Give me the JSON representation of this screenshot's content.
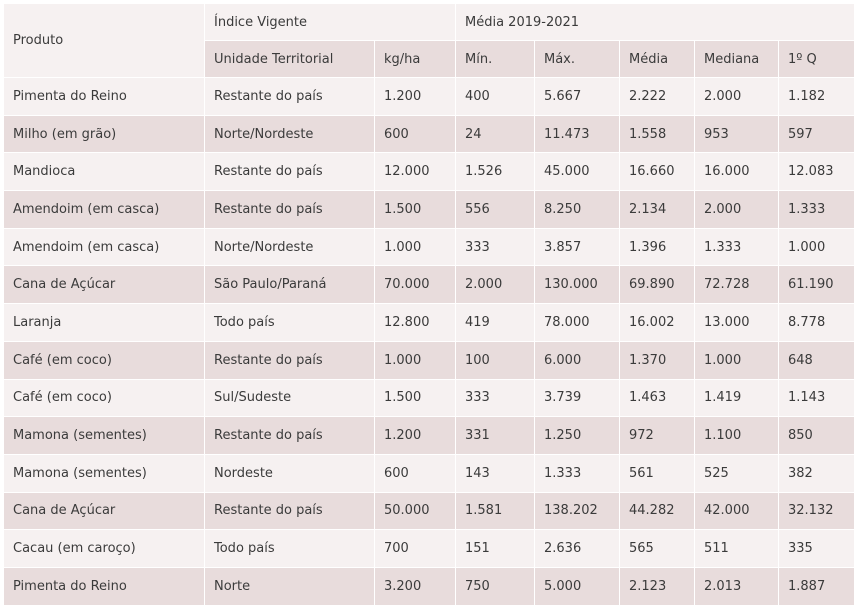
{
  "table": {
    "header": {
      "produto": "Produto",
      "indice_vigente": "Índice Vigente",
      "media_periodo": "Média 2019-2021",
      "unidade_territorial": "Unidade Territorial",
      "kg_ha": "kg/ha",
      "min": "Mín.",
      "max": "Máx.",
      "media": "Média",
      "mediana": "Mediana",
      "q1": "1º Q"
    },
    "rows": [
      {
        "produto": "Pimenta do Reino",
        "unidade": "Restante do país",
        "kg_ha": "1.200",
        "min": "400",
        "max": "5.667",
        "media": "2.222",
        "mediana": "2.000",
        "q1": "1.182"
      },
      {
        "produto": "Milho (em grão)",
        "unidade": "Norte/Nordeste",
        "kg_ha": "600",
        "min": "24",
        "max": "11.473",
        "media": "1.558",
        "mediana": "953",
        "q1": "597"
      },
      {
        "produto": "Mandioca",
        "unidade": "Restante do país",
        "kg_ha": "12.000",
        "min": "1.526",
        "max": "45.000",
        "media": "16.660",
        "mediana": "16.000",
        "q1": "12.083"
      },
      {
        "produto": "Amendoim (em casca)",
        "unidade": "Restante do país",
        "kg_ha": "1.500",
        "min": "556",
        "max": "8.250",
        "media": "2.134",
        "mediana": "2.000",
        "q1": "1.333"
      },
      {
        "produto": "Amendoim (em casca)",
        "unidade": "Norte/Nordeste",
        "kg_ha": "1.000",
        "min": "333",
        "max": "3.857",
        "media": "1.396",
        "mediana": "1.333",
        "q1": "1.000"
      },
      {
        "produto": "Cana de Açúcar",
        "unidade": "São Paulo/Paraná",
        "kg_ha": "70.000",
        "min": "2.000",
        "max": "130.000",
        "media": "69.890",
        "mediana": "72.728",
        "q1": "61.190"
      },
      {
        "produto": "Laranja",
        "unidade": "Todo país",
        "kg_ha": "12.800",
        "min": "419",
        "max": "78.000",
        "media": "16.002",
        "mediana": "13.000",
        "q1": "8.778"
      },
      {
        "produto": "Café (em coco)",
        "unidade": "Restante do país",
        "kg_ha": "1.000",
        "min": "100",
        "max": "6.000",
        "media": "1.370",
        "mediana": "1.000",
        "q1": "648"
      },
      {
        "produto": "Café (em coco)",
        "unidade": "Sul/Sudeste",
        "kg_ha": "1.500",
        "min": "333",
        "max": "3.739",
        "media": "1.463",
        "mediana": "1.419",
        "q1": "1.143"
      },
      {
        "produto": "Mamona (sementes)",
        "unidade": "Restante do país",
        "kg_ha": "1.200",
        "min": "331",
        "max": "1.250",
        "media": "972",
        "mediana": "1.100",
        "q1": "850"
      },
      {
        "produto": "Mamona (sementes)",
        "unidade": "Nordeste",
        "kg_ha": "600",
        "min": "143",
        "max": "1.333",
        "media": "561",
        "mediana": "525",
        "q1": "382"
      },
      {
        "produto": "Cana de Açúcar",
        "unidade": "Restante do país",
        "kg_ha": "50.000",
        "min": "1.581",
        "max": "138.202",
        "media": "44.282",
        "mediana": "42.000",
        "q1": "32.132"
      },
      {
        "produto": "Cacau (em caroço)",
        "unidade": "Todo país",
        "kg_ha": "700",
        "min": "151",
        "max": "2.636",
        "media": "565",
        "mediana": "511",
        "q1": "335"
      },
      {
        "produto": "Pimenta do Reino",
        "unidade": "Norte",
        "kg_ha": "3.200",
        "min": "750",
        "max": "5.000",
        "media": "2.123",
        "mediana": "2.013",
        "q1": "1.887"
      }
    ]
  }
}
